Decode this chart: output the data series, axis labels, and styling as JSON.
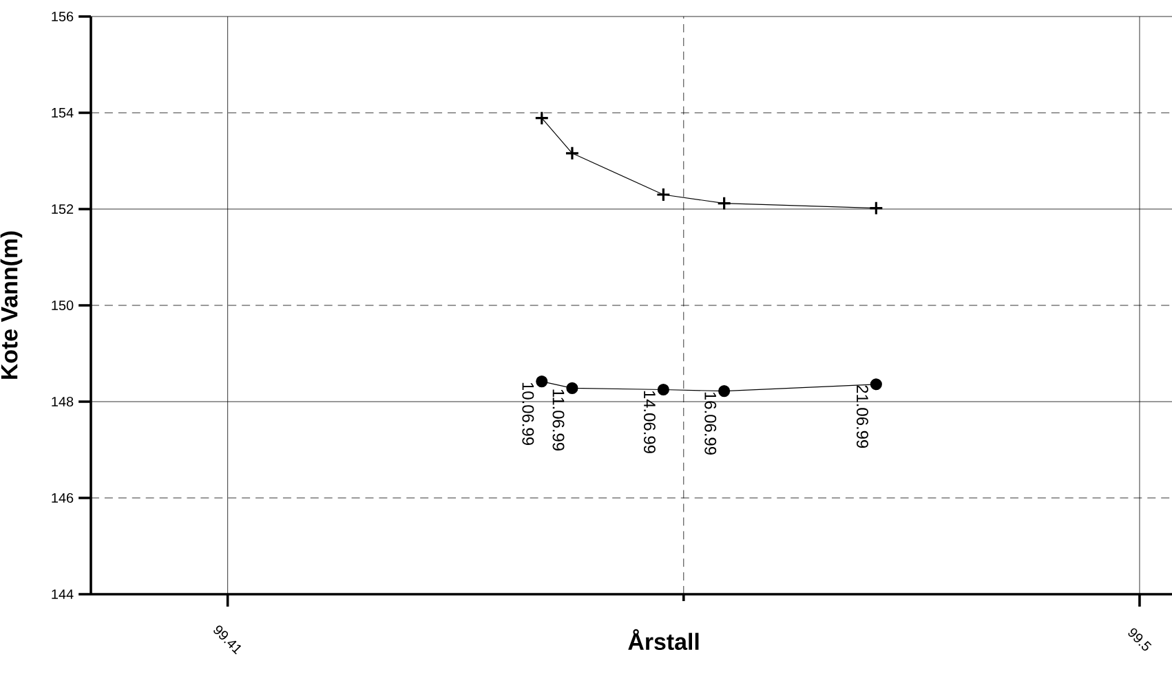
{
  "chart_data": {
    "type": "line",
    "xlabel": "Årstall",
    "ylabel": "Kote Vann(m)",
    "series": [
      {
        "color": "#000000",
        "marker": "cross",
        "x": [
          99.441,
          99.444,
          99.453,
          99.459,
          99.474
        ],
        "values": [
          153.89,
          153.16,
          152.3,
          152.12,
          152.02
        ]
      },
      {
        "color": "#000000",
        "marker": "circle",
        "x": [
          99.441,
          99.444,
          99.453,
          99.459,
          99.474
        ],
        "values": [
          148.42,
          148.28,
          148.25,
          148.22,
          148.36
        ]
      }
    ],
    "xlim": [
      99.3965,
      99.5032
    ],
    "ylim": [
      144,
      156
    ],
    "xticks": [
      99.41,
      {
        "value": 99.455,
        "label": null
      },
      99.5
    ],
    "yticks": [
      144,
      146,
      148,
      150,
      152,
      154,
      156
    ],
    "grid": true,
    "line_style": "solid",
    "annotations": [
      {
        "text": "10.06.99",
        "x": 99.441,
        "y": 148.42
      },
      {
        "text": "11.06.99",
        "x": 99.444,
        "y": 148.28
      },
      {
        "text": "14.06.99",
        "x": 99.453,
        "y": 148.25
      },
      {
        "text": "16.06.99",
        "x": 99.459,
        "y": 148.22
      },
      {
        "text": "21.06.99",
        "x": 99.474,
        "y": 148.36
      }
    ]
  }
}
